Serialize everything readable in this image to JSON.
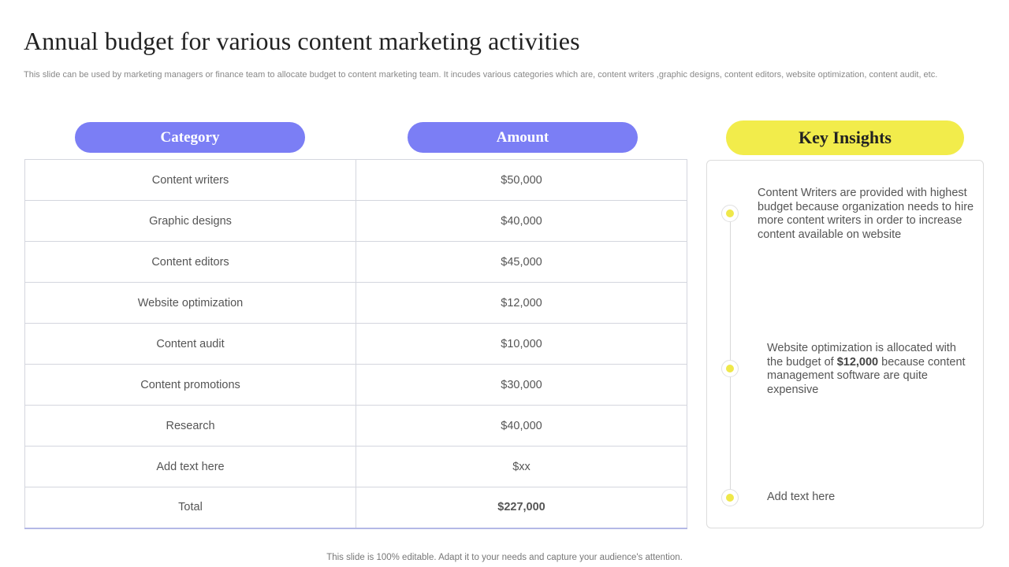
{
  "title": "Annual budget for various content marketing activities",
  "subtitle": "This slide can be used by marketing managers or finance team to allocate budget to content marketing team. It incudes various categories which are, content writers ,graphic designs, content editors, website optimization, content audit, etc.",
  "table": {
    "headers": {
      "category": "Category",
      "amount": "Amount"
    },
    "rows": [
      {
        "category": "Content writers",
        "amount": "$50,000"
      },
      {
        "category": "Graphic designs",
        "amount": "$40,000"
      },
      {
        "category": "Content editors",
        "amount": "$45,000"
      },
      {
        "category": "Website optimization",
        "amount": "$12,000"
      },
      {
        "category": "Content audit",
        "amount": "$10,000"
      },
      {
        "category": "Content promotions",
        "amount": "$30,000"
      },
      {
        "category": "Research",
        "amount": "$40,000"
      },
      {
        "category": "Add text here",
        "amount": "$xx"
      },
      {
        "category": "Total",
        "amount": "$227,000"
      }
    ]
  },
  "insights": {
    "heading": "Key Insights",
    "items": [
      {
        "text": "Content Writers are provided with highest budget because organization needs to hire more content writers in order to increase content available  on website"
      },
      {
        "pre": "Website optimization is allocated with the budget of ",
        "bold": "$12,000",
        "post": " because content management software are quite expensive"
      },
      {
        "text": "Add text here"
      }
    ]
  },
  "footer": "This slide is 100% editable. Adapt it to your needs and capture your audience's attention.",
  "colors": {
    "header_pill": "#7b7ef5",
    "insight_pill": "#f2ec4b",
    "dot": "#efe84a"
  }
}
